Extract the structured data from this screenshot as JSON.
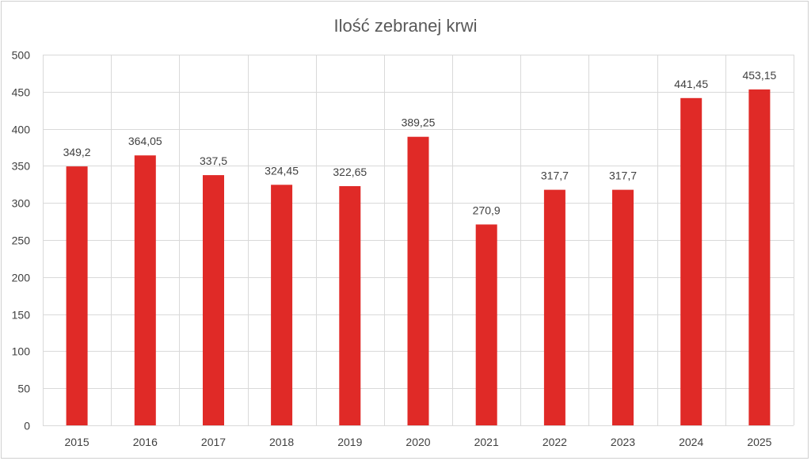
{
  "chart_data": {
    "type": "bar",
    "title": "Ilość zebranej krwi",
    "xlabel": "",
    "ylabel": "",
    "categories": [
      "2015",
      "2016",
      "2017",
      "2018",
      "2019",
      "2020",
      "2021",
      "2022",
      "2023",
      "2024",
      "2025"
    ],
    "values": [
      349.2,
      364.05,
      337.5,
      324.45,
      322.65,
      389.25,
      270.9,
      317.7,
      317.7,
      441.45,
      453.15
    ],
    "value_labels": [
      "349,2",
      "364,05",
      "337,5",
      "324,45",
      "322,65",
      "389,25",
      "270,9",
      "317,7",
      "317,7",
      "441,45",
      "453,15"
    ],
    "ylim": [
      0,
      500
    ],
    "yticks": [
      0,
      50,
      100,
      150,
      200,
      250,
      300,
      350,
      400,
      450,
      500
    ],
    "grid": "on",
    "legend": "none",
    "bar_color": "#e02a27"
  }
}
